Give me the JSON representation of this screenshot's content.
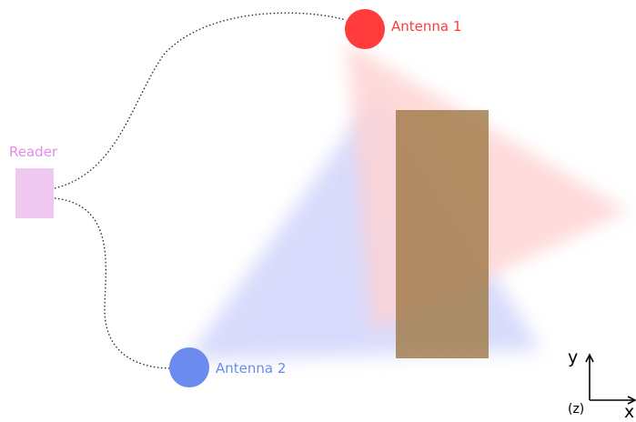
{
  "labels": {
    "reader": "Reader",
    "antenna1": "Antenna 1",
    "antenna2": "Antenna 2",
    "axis_y": "y",
    "axis_x": "x",
    "axis_z": "(z)"
  },
  "colors": {
    "reader": "#eec8ef",
    "reader_label": "#e48be6",
    "antenna1": "#ff3b3b",
    "antenna1_beam": "#ffd2d2",
    "antenna2": "#6b8cee",
    "antenna2_beam": "#d6d9fb",
    "object": "#a07a48",
    "axes": "#000000"
  }
}
